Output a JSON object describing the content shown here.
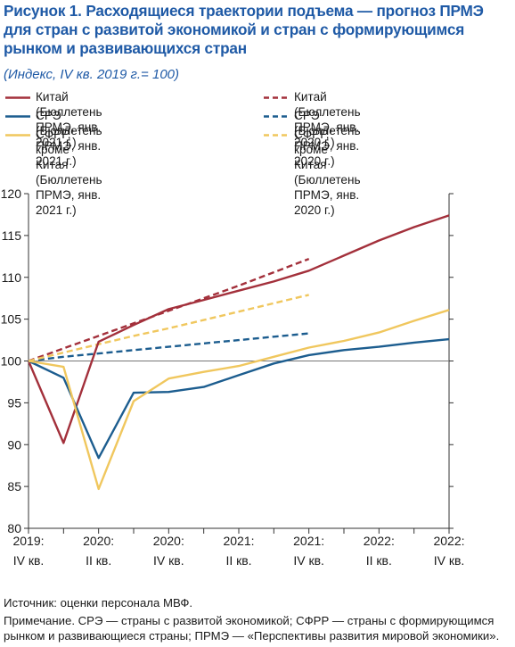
{
  "title": "Рисунок 1. Расходящиеся траектории подъема — прогноз ПРМЭ для стран с развитой экономикой и стран с формирующимся рынком и развивающихся стран",
  "subtitle": "(Индекс, IV кв. 2019 г.= 100)",
  "legend": [
    {
      "label": "Китай (Бюллетень ПРМЭ, янв. 2021 г.)",
      "color": "#a3303b",
      "style": "solid"
    },
    {
      "label": "СРЭ (Бюллетень ПРМЭ, янв. 2021 г.)",
      "color": "#1c5d8f",
      "style": "solid"
    },
    {
      "label": "СФРР, кроме Китая\n(Бюллетень ПРМЭ, янв. 2021 г.)",
      "color": "#f0c75e",
      "style": "solid"
    },
    {
      "label": "Китай (Бюллетень ПРМЭ, янв. 2020 г.)",
      "color": "#a3303b",
      "style": "dashed"
    },
    {
      "label": "СРЭ (Бюллетень ПРМЭ, янв. 2020 г.)",
      "color": "#1c5d8f",
      "style": "dashed"
    },
    {
      "label": "СФРР, кроме Китая\n(Бюллетень ПРМЭ, янв. 2020 г.)",
      "color": "#f0c75e",
      "style": "dashed"
    }
  ],
  "chart_data": {
    "type": "line",
    "ylim": [
      80,
      120
    ],
    "yticks": [
      80,
      85,
      90,
      95,
      100,
      105,
      110,
      115,
      120
    ],
    "x_labels": [
      {
        "year": "2019:",
        "q": "IV кв."
      },
      {
        "year": "2020:",
        "q": "II кв."
      },
      {
        "year": "2020:",
        "q": "IV кв."
      },
      {
        "year": "2021:",
        "q": "II кв."
      },
      {
        "year": "2021:",
        "q": "IV кв."
      },
      {
        "year": "2022:",
        "q": "II кв."
      },
      {
        "year": "2022:",
        "q": "IV кв."
      }
    ],
    "quarters": [
      "2019:IV",
      "2020:I",
      "2020:II",
      "2020:III",
      "2020:IV",
      "2021:I",
      "2021:II",
      "2021:III",
      "2021:IV",
      "2022:I",
      "2022:II",
      "2022:III",
      "2022:IV"
    ],
    "reference_line": 100,
    "series": [
      {
        "name": "Китай (Бюллетень ПРМЭ, янв. 2021 г.)",
        "color": "#a3303b",
        "dashed": false,
        "values": [
          100,
          90.2,
          102.3,
          104.3,
          106.2,
          107.3,
          108.4,
          109.5,
          110.8,
          112.6,
          114.4,
          116.0,
          117.4
        ]
      },
      {
        "name": "СРЭ (Бюллетень ПРМЭ, янв. 2021 г.)",
        "color": "#1c5d8f",
        "dashed": false,
        "values": [
          100,
          98.0,
          88.4,
          96.2,
          96.3,
          96.9,
          98.3,
          99.7,
          100.7,
          101.3,
          101.7,
          102.2,
          102.6
        ]
      },
      {
        "name": "СФРР, кроме Китая (Бюллетень ПРМЭ, янв. 2021 г.)",
        "color": "#f0c75e",
        "dashed": false,
        "values": [
          100,
          99.3,
          84.7,
          95.2,
          97.9,
          98.7,
          99.4,
          100.5,
          101.6,
          102.4,
          103.4,
          104.8,
          106.1
        ]
      },
      {
        "name": "Китай (Бюллетень ПРМЭ, янв. 2020 г.)",
        "color": "#a3303b",
        "dashed": true,
        "values": [
          100,
          101.5,
          103.0,
          104.5,
          106.0,
          107.5,
          109.0,
          110.6,
          112.2
        ]
      },
      {
        "name": "СРЭ (Бюллетень ПРМЭ, янв. 2020 г.)",
        "color": "#1c5d8f",
        "dashed": true,
        "values": [
          100,
          100.5,
          100.9,
          101.3,
          101.7,
          102.1,
          102.5,
          102.9,
          103.3
        ]
      },
      {
        "name": "СФРР, кроме Китая (Бюллетень ПРМЭ, янв. 2020 г.)",
        "color": "#f0c75e",
        "dashed": true,
        "values": [
          100,
          101.0,
          102.0,
          103.0,
          103.9,
          104.9,
          105.9,
          106.9,
          107.9
        ]
      }
    ]
  },
  "footer": {
    "source": "Источник: оценки персонала МВФ.",
    "note": "Примечание. СРЭ — страны с развитой экономикой; СФРР — страны с формирующимся рынком и развивающиеся страны; ПРМЭ — «Перспективы развития мировой экономики»."
  }
}
